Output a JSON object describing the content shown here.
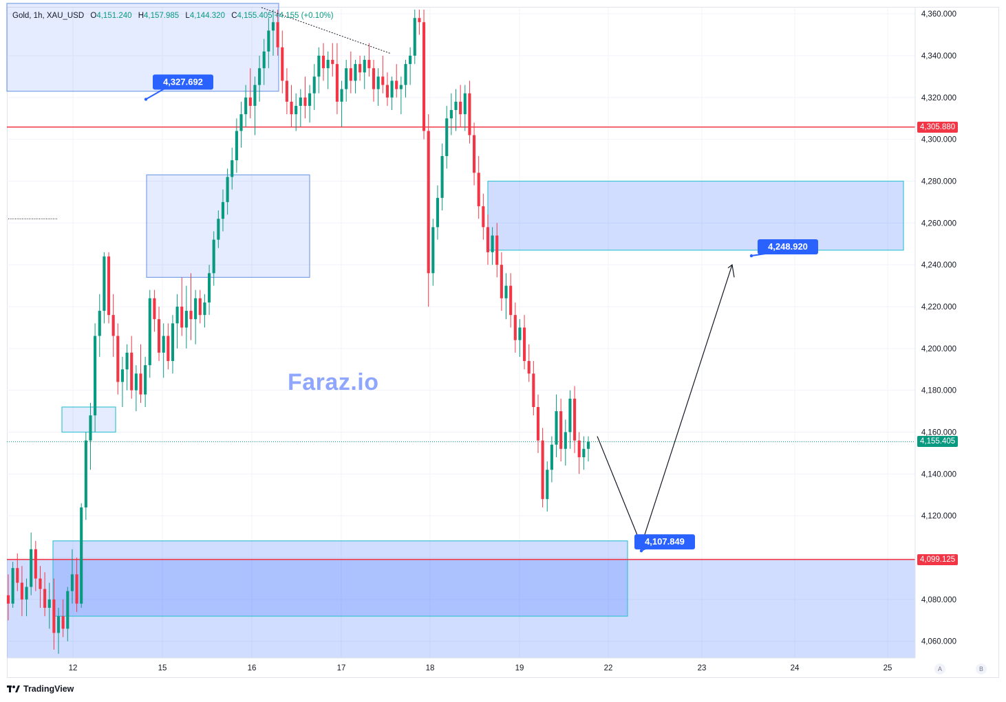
{
  "legend": {
    "symbol": "Gold, 1h, XAU_USD",
    "open_label": "O",
    "open": "4,151.240",
    "high_label": "H",
    "high": "4,157.985",
    "low_label": "L",
    "low": "4,144.320",
    "close_label": "C",
    "close": "4,155.405",
    "change": "+4.155 (+0.10%)"
  },
  "watermark": "Faraz.io",
  "branding": "TradingView",
  "axis_buttons": [
    "A",
    "B"
  ],
  "colors": {
    "up": "#089981",
    "down": "#f23645",
    "zone_fill": "#bbd0ff",
    "zone_border": "#3bc3d6",
    "callout": "#2962ff",
    "hline": "#f23645",
    "watermark": "#8fa6ff"
  },
  "chart_data": {
    "type": "candlestick",
    "ylim": [
      4052,
      4363
    ],
    "y_ticks": [
      "4,060.000",
      "4,080.000",
      "4,100.000",
      "4,120.000",
      "4,140.000",
      "4,160.000",
      "4,180.000",
      "4,200.000",
      "4,220.000",
      "4,240.000",
      "4,260.000",
      "4,280.000",
      "4,300.000",
      "4,320.000",
      "4,340.000",
      "4,360.000"
    ],
    "x_ticks": [
      "12",
      "15",
      "16",
      "17",
      "18",
      "19",
      "22",
      "23",
      "24",
      "25"
    ],
    "price_labels": [
      {
        "value": 4305.88,
        "text": "4,305.880",
        "color": "#f23645"
      },
      {
        "value": 4155.405,
        "text": "4,155.405",
        "color": "#089981"
      },
      {
        "value": 4099.125,
        "text": "4,099.125",
        "color": "#f23645"
      }
    ],
    "horizontal_lines": [
      {
        "price": 4305.88,
        "color": "#f23645"
      },
      {
        "price": 4099.125,
        "color": "#f23645"
      }
    ],
    "current_price": 4155.405,
    "callouts": [
      {
        "text": "4,327.692",
        "price": 4327.692
      },
      {
        "text": "4,248.920",
        "price": 4248.92
      },
      {
        "text": "4,107.849",
        "price": 4107.849
      }
    ],
    "candles": [
      [
        4082,
        4092,
        4070,
        4078
      ],
      [
        4078,
        4098,
        4076,
        4095
      ],
      [
        4095,
        4102,
        4084,
        4088
      ],
      [
        4088,
        4096,
        4072,
        4080
      ],
      [
        4080,
        4090,
        4072,
        4086
      ],
      [
        4086,
        4112,
        4082,
        4104
      ],
      [
        4104,
        4108,
        4084,
        4090
      ],
      [
        4090,
        4096,
        4076,
        4085
      ],
      [
        4085,
        4093,
        4072,
        4076
      ],
      [
        4076,
        4088,
        4066,
        4080
      ],
      [
        4080,
        4090,
        4056,
        4064
      ],
      [
        4064,
        4076,
        4054,
        4072
      ],
      [
        4072,
        4080,
        4062,
        4066
      ],
      [
        4066,
        4086,
        4060,
        4084
      ],
      [
        4084,
        4104,
        4078,
        4092
      ],
      [
        4092,
        4100,
        4074,
        4078
      ],
      [
        4078,
        4126,
        4076,
        4124
      ],
      [
        4124,
        4160,
        4118,
        4156
      ],
      [
        4156,
        4174,
        4142,
        4168
      ],
      [
        4168,
        4212,
        4160,
        4206
      ],
      [
        4206,
        4226,
        4196,
        4218
      ],
      [
        4218,
        4246,
        4212,
        4244
      ],
      [
        4244,
        4246,
        4212,
        4216
      ],
      [
        4216,
        4226,
        4196,
        4206
      ],
      [
        4206,
        4212,
        4178,
        4184
      ],
      [
        4184,
        4196,
        4172,
        4190
      ],
      [
        4190,
        4202,
        4180,
        4198
      ],
      [
        4198,
        4206,
        4176,
        4180
      ],
      [
        4180,
        4192,
        4170,
        4188
      ],
      [
        4188,
        4202,
        4174,
        4178
      ],
      [
        4178,
        4196,
        4172,
        4192
      ],
      [
        4192,
        4228,
        4186,
        4224
      ],
      [
        4224,
        4228,
        4208,
        4214
      ],
      [
        4214,
        4220,
        4194,
        4198
      ],
      [
        4198,
        4212,
        4186,
        4206
      ],
      [
        4206,
        4212,
        4190,
        4194
      ],
      [
        4194,
        4216,
        4188,
        4212
      ],
      [
        4212,
        4226,
        4200,
        4220
      ],
      [
        4220,
        4234,
        4206,
        4210
      ],
      [
        4210,
        4230,
        4200,
        4218
      ],
      [
        4218,
        4236,
        4204,
        4214
      ],
      [
        4214,
        4228,
        4202,
        4224
      ],
      [
        4224,
        4228,
        4212,
        4216
      ],
      [
        4216,
        4226,
        4210,
        4222
      ],
      [
        4222,
        4240,
        4216,
        4236
      ],
      [
        4236,
        4256,
        4230,
        4252
      ],
      [
        4252,
        4266,
        4248,
        4262
      ],
      [
        4262,
        4276,
        4256,
        4270
      ],
      [
        4270,
        4286,
        4264,
        4282
      ],
      [
        4282,
        4296,
        4276,
        4290
      ],
      [
        4290,
        4310,
        4284,
        4304
      ],
      [
        4304,
        4318,
        4296,
        4312
      ],
      [
        4312,
        4326,
        4306,
        4320
      ],
      [
        4320,
        4334,
        4310,
        4316
      ],
      [
        4316,
        4330,
        4302,
        4326
      ],
      [
        4326,
        4340,
        4318,
        4334
      ],
      [
        4334,
        4348,
        4326,
        4342
      ],
      [
        4342,
        4358,
        4334,
        4352
      ],
      [
        4352,
        4362,
        4340,
        4356
      ],
      [
        4356,
        4362,
        4340,
        4344
      ],
      [
        4344,
        4352,
        4322,
        4328
      ],
      [
        4328,
        4334,
        4312,
        4318
      ],
      [
        4318,
        4326,
        4306,
        4312
      ],
      [
        4312,
        4322,
        4304,
        4316
      ],
      [
        4316,
        4324,
        4306,
        4320
      ],
      [
        4320,
        4330,
        4310,
        4316
      ],
      [
        4316,
        4326,
        4308,
        4322
      ],
      [
        4322,
        4336,
        4314,
        4330
      ],
      [
        4330,
        4344,
        4322,
        4340
      ],
      [
        4340,
        4346,
        4328,
        4334
      ],
      [
        4334,
        4342,
        4324,
        4338
      ],
      [
        4338,
        4346,
        4330,
        4336
      ],
      [
        4336,
        4346,
        4312,
        4318
      ],
      [
        4318,
        4328,
        4306,
        4324
      ],
      [
        4324,
        4338,
        4318,
        4334
      ],
      [
        4334,
        4342,
        4322,
        4328
      ],
      [
        4328,
        4338,
        4322,
        4336
      ],
      [
        4336,
        4340,
        4328,
        4332
      ],
      [
        4332,
        4340,
        4324,
        4338
      ],
      [
        4338,
        4346,
        4330,
        4334
      ],
      [
        4334,
        4338,
        4318,
        4324
      ],
      [
        4324,
        4334,
        4316,
        4330
      ],
      [
        4330,
        4340,
        4322,
        4326
      ],
      [
        4326,
        4332,
        4316,
        4320
      ],
      [
        4320,
        4330,
        4314,
        4328
      ],
      [
        4328,
        4336,
        4320,
        4324
      ],
      [
        4324,
        4330,
        4312,
        4326
      ],
      [
        4326,
        4338,
        4320,
        4336
      ],
      [
        4336,
        4344,
        4326,
        4340
      ],
      [
        4340,
        4362,
        4336,
        4358
      ],
      [
        4358,
        4362,
        4350,
        4356
      ],
      [
        4356,
        4362,
        4300,
        4304
      ],
      [
        4304,
        4312,
        4220,
        4236
      ],
      [
        4236,
        4262,
        4230,
        4258
      ],
      [
        4258,
        4278,
        4252,
        4272
      ],
      [
        4272,
        4298,
        4266,
        4292
      ],
      [
        4292,
        4316,
        4286,
        4310
      ],
      [
        4310,
        4322,
        4302,
        4314
      ],
      [
        4314,
        4324,
        4304,
        4318
      ],
      [
        4318,
        4326,
        4306,
        4312
      ],
      [
        4312,
        4326,
        4304,
        4322
      ],
      [
        4322,
        4328,
        4298,
        4302
      ],
      [
        4302,
        4308,
        4278,
        4284
      ],
      [
        4284,
        4292,
        4262,
        4268
      ],
      [
        4268,
        4274,
        4252,
        4258
      ],
      [
        4258,
        4264,
        4240,
        4246
      ],
      [
        4246,
        4258,
        4240,
        4254
      ],
      [
        4254,
        4260,
        4234,
        4240
      ],
      [
        4240,
        4246,
        4218,
        4224
      ],
      [
        4224,
        4236,
        4214,
        4230
      ],
      [
        4230,
        4236,
        4210,
        4216
      ],
      [
        4216,
        4222,
        4198,
        4204
      ],
      [
        4204,
        4214,
        4196,
        4210
      ],
      [
        4210,
        4216,
        4190,
        4194
      ],
      [
        4194,
        4202,
        4184,
        4188
      ],
      [
        4188,
        4194,
        4168,
        4172
      ],
      [
        4172,
        4178,
        4150,
        4156
      ],
      [
        4156,
        4162,
        4124,
        4128
      ],
      [
        4128,
        4146,
        4122,
        4142
      ],
      [
        4142,
        4158,
        4136,
        4154
      ],
      [
        4154,
        4178,
        4148,
        4170
      ],
      [
        4170,
        4176,
        4146,
        4152
      ],
      [
        4152,
        4166,
        4144,
        4160
      ],
      [
        4160,
        4180,
        4152,
        4176
      ],
      [
        4176,
        4182,
        4150,
        4156
      ],
      [
        4156,
        4160,
        4140,
        4148
      ],
      [
        4148,
        4158,
        4142,
        4152
      ],
      [
        4152,
        4158,
        4146,
        4155.405
      ]
    ]
  }
}
